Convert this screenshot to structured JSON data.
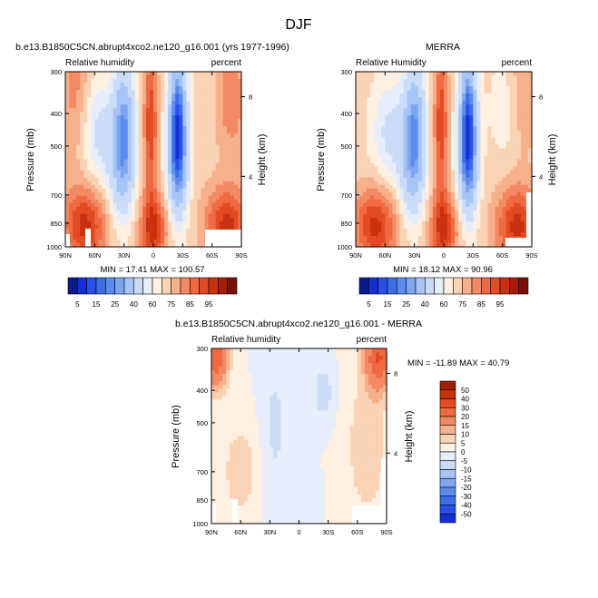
{
  "figure": {
    "title": "DJF"
  },
  "colors": {
    "rh_scale": [
      "#0a1a8c",
      "#1430d2",
      "#2850e8",
      "#3c6ee8",
      "#5a8ced",
      "#7ea6f0",
      "#a6c4f5",
      "#cadcf7",
      "#e6eefb",
      "#fff0e1",
      "#fad2b4",
      "#f7b08c",
      "#f48a64",
      "#ef6a41",
      "#e34b23",
      "#c9320f",
      "#a41d08",
      "#7a0e05"
    ],
    "diff_scale": [
      "#0a1a8c",
      "#1430d2",
      "#2850e8",
      "#3c6ee8",
      "#5a8ced",
      "#7ea6f0",
      "#a6c4f5",
      "#cadcf7",
      "#e6eefb",
      "#fff0e1",
      "#fad2b4",
      "#f7b08c",
      "#f48a64",
      "#ef6a41",
      "#e34b23",
      "#c9320f",
      "#a41d08",
      "#7a0e05"
    ]
  },
  "chart_data": [
    {
      "type": "heatmap",
      "title": "b.e13.B1850C5CN.abrupt4xco2.ne120_g16.001 (yrs 1977-1996)",
      "left_label": "Relative humidity",
      "right_label": "percent",
      "xlabel": "",
      "ylabel": "Pressure (mb)",
      "y2label": "Height (km)",
      "x_ticks": [
        "90N",
        "60N",
        "30N",
        "0",
        "30S",
        "60S",
        "90S"
      ],
      "y_ticks": [
        "300",
        "400",
        "500",
        "700",
        "850",
        "1000"
      ],
      "y2_ticks": [
        "8",
        "4"
      ],
      "stats": "MIN =  17.41  MAX = 100.57",
      "value_range": [
        17.41,
        100.57
      ],
      "scale": "rh"
    },
    {
      "type": "heatmap",
      "title": "MERRA",
      "left_label": "Relative Humidity",
      "right_label": "percent",
      "xlabel": "",
      "ylabel": "Pressure (mb)",
      "y2label": "Height (km)",
      "x_ticks": [
        "90N",
        "60N",
        "30N",
        "0",
        "30S",
        "60S",
        "90S"
      ],
      "y_ticks": [
        "300",
        "400",
        "500",
        "700",
        "850",
        "1000"
      ],
      "y2_ticks": [
        "8",
        "4"
      ],
      "stats": "MIN =  18.12  MAX =  90.96",
      "value_range": [
        18.12,
        90.96
      ],
      "scale": "rh"
    },
    {
      "type": "heatmap",
      "title": "b.e13.B1850C5CN.abrupt4xco2.ne120_g16.001 - MERRA",
      "left_label": "Relative humidity",
      "right_label": "percent",
      "xlabel": "",
      "ylabel": "Pressure (mb)",
      "y2label": "Height (km)",
      "x_ticks": [
        "90N",
        "60N",
        "30N",
        "0",
        "30S",
        "60S",
        "90S"
      ],
      "y_ticks": [
        "300",
        "400",
        "500",
        "700",
        "850",
        "1000"
      ],
      "y2_ticks": [
        "8",
        "4"
      ],
      "stats": "MIN = -11.89  MAX =  40.79",
      "value_range": [
        -11.89,
        40.79
      ],
      "scale": "diff"
    }
  ],
  "colorbars": {
    "rh_labels": [
      "5",
      "15",
      "25",
      "40",
      "60",
      "75",
      "85",
      "95"
    ],
    "diff_labels": [
      "50",
      "40",
      "30",
      "20",
      "15",
      "10",
      "5",
      "0",
      "-5",
      "-10",
      "-15",
      "-20",
      "-30",
      "-40",
      "-50"
    ]
  }
}
